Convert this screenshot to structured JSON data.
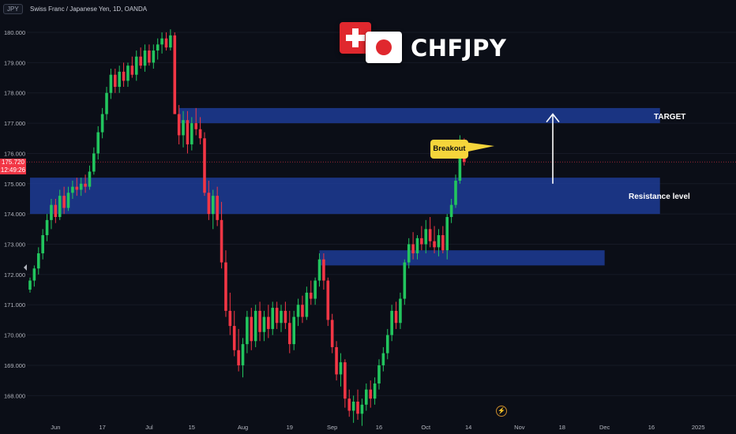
{
  "header": {
    "symbol_badge": "JPY",
    "title": "Swiss Franc / Japanese Yen, 1D, OANDA"
  },
  "branding": {
    "pair": "CHFJPY",
    "flag_left": "switzerland-flag",
    "flag_right": "japan-flag"
  },
  "price_tag": {
    "price": "175.720",
    "countdown": "12:49:26"
  },
  "annotations": {
    "target": "TARGET",
    "resistance": "Resistance level",
    "breakout": "Breakout"
  },
  "colors": {
    "background": "#0b0e17",
    "up": "#26a69a",
    "up_bright": "#22c55e",
    "down": "#f23645",
    "zone": "#1f3fa0",
    "callout": "#f5d53b"
  },
  "chart_data": {
    "type": "candlestick",
    "ylim": [
      167.2,
      180.6
    ],
    "yticks": [
      "180.000",
      "179.000",
      "178.000",
      "177.000",
      "176.000",
      "175.000",
      "174.000",
      "173.000",
      "172.000",
      "171.000",
      "170.000",
      "169.000",
      "168.000"
    ],
    "xticks": [
      {
        "label": "Jun",
        "i": 6
      },
      {
        "label": "17",
        "i": 17
      },
      {
        "label": "Jul",
        "i": 28
      },
      {
        "label": "15",
        "i": 38
      },
      {
        "label": "Aug",
        "i": 50
      },
      {
        "label": "19",
        "i": 61
      },
      {
        "label": "Sep",
        "i": 71
      },
      {
        "label": "16",
        "i": 82
      },
      {
        "label": "Oct",
        "i": 93
      },
      {
        "label": "14",
        "i": 103
      },
      {
        "label": "Nov",
        "i": 115
      },
      {
        "label": "18",
        "i": 125
      },
      {
        "label": "Dec",
        "i": 135
      },
      {
        "label": "16",
        "i": 146
      },
      {
        "label": "2025",
        "i": 157
      }
    ],
    "zones": [
      {
        "name": "target",
        "label": "TARGET",
        "y1": 177.5,
        "y2": 177.0,
        "i_start": 35,
        "i_end": 148
      },
      {
        "name": "resistance",
        "label": "Resistance level",
        "y1": 175.2,
        "y2": 174.0,
        "i_start": 0,
        "i_end": 148
      },
      {
        "name": "support",
        "label": "",
        "y1": 172.8,
        "y2": 172.3,
        "i_start": 68,
        "i_end": 135
      }
    ],
    "current_price": 175.72,
    "target_arrow": {
      "i": 119,
      "from": 175.0,
      "to": 177.3
    },
    "candles": [
      [
        171.5,
        171.9,
        171.4,
        171.8
      ],
      [
        171.8,
        172.3,
        171.6,
        172.2
      ],
      [
        172.2,
        172.9,
        172.0,
        172.7
      ],
      [
        172.7,
        173.5,
        172.5,
        173.3
      ],
      [
        173.3,
        174.0,
        173.1,
        173.8
      ],
      [
        173.8,
        174.5,
        173.5,
        174.3
      ],
      [
        174.3,
        174.5,
        173.7,
        173.9
      ],
      [
        173.9,
        174.8,
        173.8,
        174.6
      ],
      [
        174.6,
        174.9,
        174.0,
        174.2
      ],
      [
        174.2,
        174.9,
        174.1,
        174.7
      ],
      [
        174.7,
        175.1,
        174.5,
        174.9
      ],
      [
        174.9,
        175.2,
        174.6,
        174.8
      ],
      [
        174.8,
        175.2,
        174.6,
        175.0
      ],
      [
        175.0,
        175.3,
        174.7,
        174.9
      ],
      [
        174.9,
        175.6,
        174.8,
        175.4
      ],
      [
        175.4,
        176.2,
        175.3,
        176.0
      ],
      [
        176.0,
        176.9,
        175.8,
        176.7
      ],
      [
        176.7,
        177.5,
        176.5,
        177.3
      ],
      [
        177.3,
        178.2,
        177.1,
        178.0
      ],
      [
        178.0,
        178.8,
        177.8,
        178.6
      ],
      [
        178.6,
        178.8,
        178.0,
        178.2
      ],
      [
        178.2,
        178.9,
        178.0,
        178.7
      ],
      [
        178.7,
        179.0,
        178.2,
        178.4
      ],
      [
        178.4,
        179.0,
        178.2,
        178.9
      ],
      [
        178.9,
        179.2,
        178.5,
        178.6
      ],
      [
        178.6,
        179.4,
        178.4,
        179.2
      ],
      [
        179.2,
        179.5,
        178.8,
        178.9
      ],
      [
        178.9,
        179.6,
        178.7,
        179.4
      ],
      [
        179.4,
        179.6,
        178.9,
        179.0
      ],
      [
        179.0,
        179.6,
        178.8,
        179.4
      ],
      [
        179.4,
        179.8,
        179.1,
        179.6
      ],
      [
        179.6,
        180.0,
        179.3,
        179.8
      ],
      [
        179.8,
        180.0,
        179.4,
        179.5
      ],
      [
        179.5,
        180.1,
        179.4,
        179.9
      ],
      [
        179.9,
        180.0,
        177.3,
        177.3
      ],
      [
        177.3,
        177.6,
        176.3,
        176.6
      ],
      [
        176.6,
        177.4,
        176.2,
        177.1
      ],
      [
        177.1,
        177.4,
        176.0,
        176.3
      ],
      [
        176.3,
        177.2,
        176.1,
        177.0
      ],
      [
        177.0,
        177.5,
        176.6,
        176.8
      ],
      [
        176.8,
        177.2,
        176.3,
        176.5
      ],
      [
        176.5,
        176.7,
        174.6,
        174.7
      ],
      [
        174.7,
        175.1,
        173.8,
        174.0
      ],
      [
        174.0,
        174.8,
        173.5,
        174.6
      ],
      [
        174.6,
        174.9,
        173.6,
        173.8
      ],
      [
        173.8,
        174.4,
        172.2,
        172.4
      ],
      [
        172.4,
        172.8,
        170.6,
        170.8
      ],
      [
        170.8,
        171.4,
        170.0,
        170.3
      ],
      [
        170.3,
        170.8,
        169.3,
        169.5
      ],
      [
        169.5,
        170.2,
        168.8,
        169.0
      ],
      [
        169.0,
        169.9,
        168.6,
        169.7
      ],
      [
        169.7,
        170.8,
        169.4,
        170.6
      ],
      [
        170.6,
        170.9,
        169.5,
        169.8
      ],
      [
        169.8,
        171.0,
        169.6,
        170.8
      ],
      [
        170.8,
        171.1,
        169.8,
        170.1
      ],
      [
        170.1,
        170.8,
        169.8,
        170.6
      ],
      [
        170.6,
        171.0,
        169.9,
        170.2
      ],
      [
        170.2,
        171.1,
        170.0,
        170.9
      ],
      [
        170.9,
        171.1,
        170.2,
        170.4
      ],
      [
        170.4,
        171.0,
        170.1,
        170.8
      ],
      [
        170.8,
        171.1,
        170.2,
        170.4
      ],
      [
        170.4,
        170.8,
        169.4,
        169.7
      ],
      [
        169.7,
        170.8,
        169.5,
        170.6
      ],
      [
        170.6,
        171.2,
        170.3,
        171.0
      ],
      [
        171.0,
        171.3,
        170.4,
        170.6
      ],
      [
        170.6,
        171.6,
        170.5,
        171.4
      ],
      [
        171.4,
        171.8,
        171.0,
        171.2
      ],
      [
        171.2,
        171.9,
        171.0,
        171.8
      ],
      [
        171.8,
        172.7,
        171.6,
        172.5
      ],
      [
        172.5,
        172.7,
        171.5,
        171.8
      ],
      [
        171.8,
        171.9,
        170.3,
        170.5
      ],
      [
        170.5,
        170.7,
        169.4,
        169.6
      ],
      [
        169.6,
        169.8,
        168.5,
        168.7
      ],
      [
        168.7,
        169.4,
        168.3,
        169.1
      ],
      [
        169.1,
        169.2,
        167.6,
        167.9
      ],
      [
        167.9,
        168.2,
        167.3,
        167.5
      ],
      [
        167.5,
        168.0,
        167.1,
        167.8
      ],
      [
        167.8,
        168.2,
        167.2,
        167.4
      ],
      [
        167.4,
        167.9,
        167.0,
        167.7
      ],
      [
        167.7,
        168.4,
        167.5,
        168.2
      ],
      [
        168.2,
        168.5,
        167.6,
        167.9
      ],
      [
        167.9,
        168.6,
        167.7,
        168.4
      ],
      [
        168.4,
        169.2,
        168.2,
        169.0
      ],
      [
        169.0,
        169.6,
        168.8,
        169.4
      ],
      [
        169.4,
        170.2,
        169.2,
        170.0
      ],
      [
        170.0,
        171.0,
        169.8,
        170.8
      ],
      [
        170.8,
        171.1,
        170.2,
        170.4
      ],
      [
        170.4,
        171.4,
        170.2,
        171.2
      ],
      [
        171.2,
        172.5,
        171.0,
        172.4
      ],
      [
        172.4,
        173.2,
        172.2,
        173.0
      ],
      [
        173.0,
        173.4,
        172.5,
        172.7
      ],
      [
        172.7,
        173.3,
        172.5,
        173.2
      ],
      [
        173.2,
        173.6,
        172.8,
        173.0
      ],
      [
        173.0,
        173.8,
        172.7,
        173.5
      ],
      [
        173.5,
        173.9,
        172.9,
        173.1
      ],
      [
        173.1,
        173.6,
        172.7,
        172.9
      ],
      [
        172.9,
        173.5,
        172.6,
        173.3
      ],
      [
        173.3,
        173.6,
        172.7,
        172.8
      ],
      [
        172.8,
        174.0,
        172.5,
        173.9
      ],
      [
        173.9,
        174.5,
        173.7,
        174.3
      ],
      [
        174.3,
        175.3,
        174.2,
        175.1
      ],
      [
        175.1,
        176.6,
        175.0,
        176.4
      ],
      [
        176.4,
        176.5,
        175.6,
        175.72
      ]
    ]
  }
}
